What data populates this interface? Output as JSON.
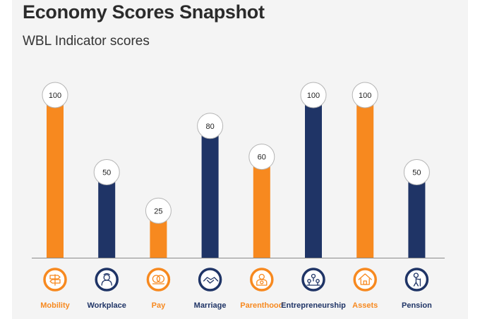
{
  "header": {
    "title": "Economy Scores Snapshot"
  },
  "chart_data": {
    "type": "bar",
    "title": "",
    "subtitle": "WBL Indicator scores",
    "categories": [
      "Mobility",
      "Workplace",
      "Pay",
      "Marriage",
      "Parenthood",
      "Entrepreneurship",
      "Assets",
      "Pension"
    ],
    "values": [
      100,
      50,
      25,
      80,
      60,
      100,
      100,
      50
    ],
    "bar_colors": [
      "#f7891f",
      "#1f3466",
      "#f7891f",
      "#1f3466",
      "#f7891f",
      "#1f3466",
      "#f7891f",
      "#1f3466"
    ],
    "icons": [
      "signpost-icon",
      "person-icon",
      "coins-icon",
      "handshake-icon",
      "parent-icon",
      "network-icon",
      "house-icon",
      "elderly-icon"
    ],
    "ylim": [
      0,
      100
    ],
    "xlabel": "",
    "ylabel": "",
    "grid": false,
    "value_labels": true
  },
  "colors": {
    "orange": "#f7891f",
    "navy": "#1f3466",
    "background": "#f4f4f4"
  }
}
